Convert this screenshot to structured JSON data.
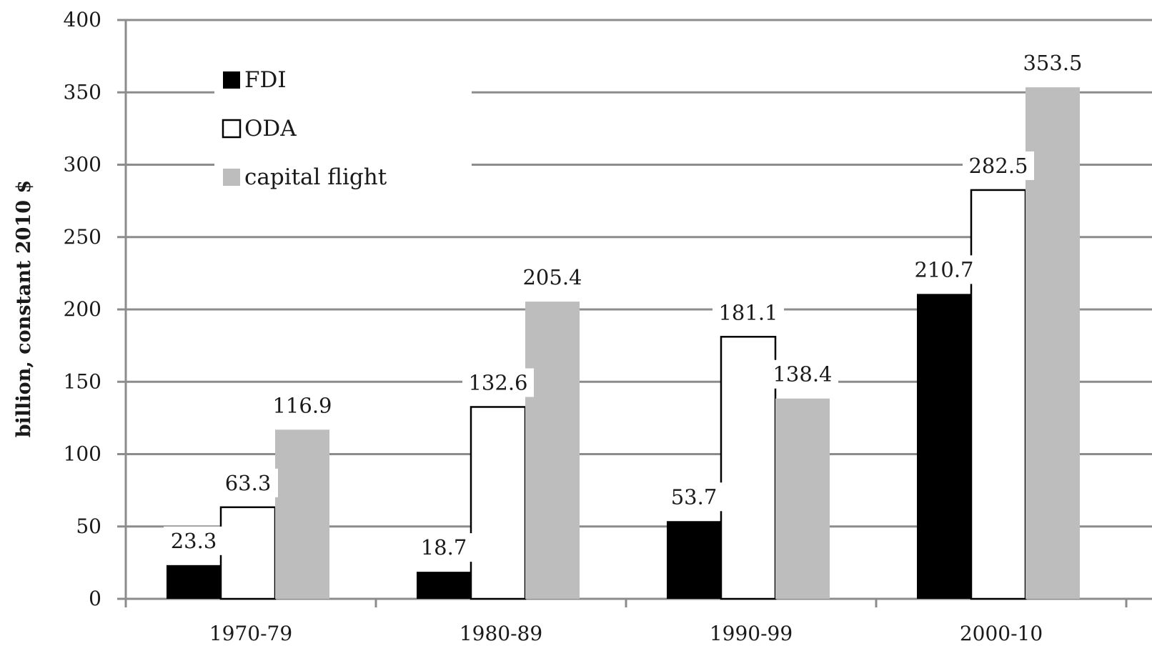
{
  "chart_data": {
    "type": "bar",
    "categories": [
      "1970-79",
      "1980-89",
      "1990-99",
      "2000-10"
    ],
    "series": [
      {
        "name": "FDI",
        "values": [
          23.3,
          18.7,
          53.7,
          210.7
        ],
        "color": "#000000"
      },
      {
        "name": "ODA",
        "values": [
          63.3,
          132.6,
          181.1,
          282.5
        ],
        "color": "#ffffff"
      },
      {
        "name": "capital flight",
        "values": [
          116.9,
          205.4,
          138.4,
          353.5
        ],
        "color": "#bdbdbd"
      }
    ],
    "data_labels": [
      [
        "23.3",
        "63.3",
        "116.9"
      ],
      [
        "18.7",
        "132.6",
        "205.4"
      ],
      [
        "53.7",
        "181.1",
        "138.4"
      ],
      [
        "210.7",
        "282.5",
        "353.5"
      ]
    ],
    "ylabel": "billion, constant 2010 $",
    "xlabel": "",
    "title": "",
    "ylim": [
      0,
      400
    ],
    "yticks": [
      0,
      50,
      100,
      150,
      200,
      250,
      300,
      350,
      400
    ],
    "ytick_labels": [
      "0",
      "50",
      "100",
      "150",
      "200",
      "250",
      "300",
      "350",
      "400"
    ],
    "grid": true,
    "legend_position": "top-left"
  }
}
